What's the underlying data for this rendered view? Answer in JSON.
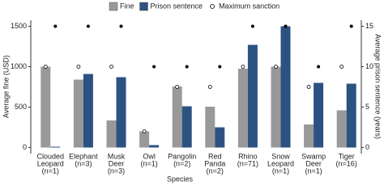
{
  "chart_data": {
    "type": "bar",
    "x_label": "Species",
    "y_label": "Average fine (USD)",
    "y2_label": "Average prison sentence (years)",
    "categories": [
      [
        "Clouded",
        "Leopard",
        "(n=1)"
      ],
      [
        "Elephant",
        "(n=3)"
      ],
      [
        "Musk",
        "Deer",
        "(n=3)"
      ],
      [
        "Owl",
        "(n=1)"
      ],
      [
        "Pangolin",
        "(n=2)"
      ],
      [
        "Red",
        "Panda",
        "(n=2)"
      ],
      [
        "Rhino",
        "(n=71)"
      ],
      [
        "Snow",
        "Leopard",
        "(n=1)"
      ],
      [
        "Swamp",
        "Deer",
        "(n=1)"
      ],
      [
        "Tiger",
        "(n=16)"
      ]
    ],
    "series": [
      {
        "name": "Fine",
        "color": "#999999",
        "style": "bar",
        "axis": "y",
        "values": [
          1000,
          840,
          335,
          200,
          755,
          505,
          975,
          1000,
          285,
          460
        ]
      },
      {
        "name": "Prison sentence",
        "color": "#2c5282",
        "style": "bar",
        "axis": "y2",
        "values": [
          0.1,
          9.1,
          8.7,
          0.3,
          5.1,
          2.5,
          12.7,
          15,
          8,
          7.9
        ]
      },
      {
        "name": "Maximum sanction",
        "color": "#ffffff",
        "style": "circle",
        "axis": "y",
        "values": [
          1000,
          1000,
          1000,
          200,
          750,
          750,
          1000,
          1000,
          750,
          1000
        ]
      },
      {
        "color": "#000000",
        "style": "dot",
        "axis": "y2",
        "values": [
          15,
          15,
          15,
          10,
          10,
          10,
          15,
          15,
          10,
          15
        ]
      }
    ],
    "ylim": [
      -75,
      1575
    ],
    "yticks": [
      0,
      500,
      1000,
      1500
    ],
    "y2lim": [
      -0.75,
      15.75
    ],
    "y2ticks": [
      0,
      5,
      10,
      15
    ],
    "legend_position": "top"
  }
}
